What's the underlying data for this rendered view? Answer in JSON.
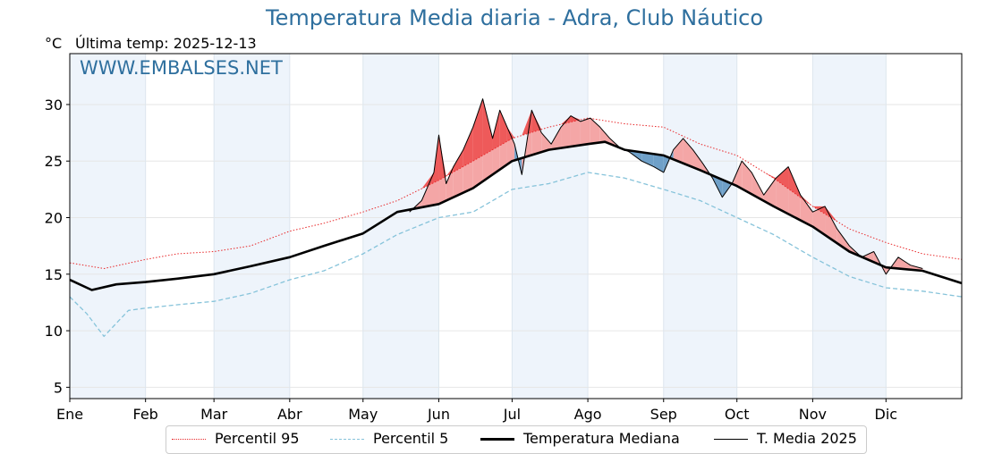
{
  "title": "Temperatura Media diaria - Adra, Club Náutico",
  "unit": "°C",
  "last_temp": "Última temp: 2025-12-13",
  "watermark": "WWW.EMBALSES.NET",
  "legend": {
    "p95": "Percentil 95",
    "p5": "Percentil 5",
    "median": "Temperatura Mediana",
    "current": "T. Media 2025"
  },
  "colors": {
    "title": "#2e6f9e",
    "p95": "#e8282a",
    "p5": "#86c3da",
    "median": "#000000",
    "current": "#000000",
    "above_fill": "#f4a6a6",
    "above_p95_fill": "#ee5a5a",
    "below_fill": "#6fa0c8",
    "month_band": "#eef4fb"
  },
  "chart_data": {
    "type": "line",
    "title": "Temperatura Media diaria - Adra, Club Náutico",
    "ylabel": "°C",
    "xlim": [
      1,
      366
    ],
    "ylim": [
      4,
      34.5
    ],
    "yticks": [
      5,
      10,
      15,
      20,
      25,
      30
    ],
    "xtick_days": [
      1,
      32,
      60,
      91,
      121,
      152,
      182,
      213,
      244,
      274,
      305,
      335
    ],
    "months": [
      "Ene",
      "Feb",
      "Mar",
      "Abr",
      "May",
      "Jun",
      "Jul",
      "Ago",
      "Sep",
      "Oct",
      "Nov",
      "Dic"
    ],
    "series": [
      {
        "name": "Percentil 95",
        "style": "dotted",
        "x": [
          1,
          15,
          32,
          45,
          60,
          75,
          91,
          105,
          121,
          135,
          152,
          166,
          182,
          197,
          213,
          228,
          244,
          259,
          274,
          289,
          305,
          320,
          335,
          350,
          366
        ],
        "values": [
          16.0,
          15.5,
          16.3,
          16.8,
          17.0,
          17.5,
          18.8,
          19.5,
          20.5,
          21.5,
          23.3,
          25.0,
          27.0,
          28.0,
          28.8,
          28.3,
          28.0,
          26.5,
          25.5,
          23.5,
          21.0,
          19.0,
          17.8,
          16.8,
          16.3
        ]
      },
      {
        "name": "Percentil 5",
        "style": "dashed",
        "x": [
          1,
          8,
          15,
          25,
          32,
          45,
          60,
          75,
          91,
          105,
          121,
          135,
          152,
          166,
          182,
          197,
          213,
          228,
          244,
          259,
          274,
          289,
          305,
          320,
          335,
          350,
          366
        ],
        "values": [
          13.0,
          11.5,
          9.5,
          11.8,
          12.0,
          12.3,
          12.6,
          13.3,
          14.5,
          15.3,
          16.8,
          18.5,
          20.0,
          20.5,
          22.5,
          23.0,
          24.0,
          23.5,
          22.5,
          21.5,
          20.0,
          18.5,
          16.5,
          14.8,
          13.8,
          13.5,
          13.0
        ]
      },
      {
        "name": "Temperatura Mediana",
        "style": "thick",
        "x": [
          1,
          10,
          20,
          32,
          45,
          60,
          75,
          91,
          105,
          121,
          135,
          152,
          166,
          182,
          197,
          213,
          220,
          228,
          244,
          259,
          274,
          289,
          305,
          320,
          335,
          350,
          366
        ],
        "values": [
          14.5,
          13.6,
          14.1,
          14.3,
          14.6,
          15.0,
          15.7,
          16.5,
          17.5,
          18.6,
          20.5,
          21.2,
          22.6,
          25.0,
          26.0,
          26.5,
          26.7,
          26.0,
          25.5,
          24.2,
          22.8,
          21.0,
          19.2,
          17.0,
          15.6,
          15.3,
          14.2
        ]
      },
      {
        "name": "T. Media 2025",
        "style": "thin",
        "x": [
          140,
          145,
          150,
          152,
          155,
          158,
          162,
          166,
          170,
          174,
          177,
          180,
          183,
          186,
          190,
          194,
          198,
          202,
          206,
          210,
          214,
          218,
          222,
          226,
          230,
          235,
          240,
          244,
          248,
          252,
          256,
          260,
          264,
          268,
          272,
          276,
          280,
          285,
          290,
          295,
          300,
          305,
          310,
          315,
          320,
          325,
          330,
          335,
          340,
          345,
          350
        ],
        "values": [
          20.5,
          21.5,
          24.0,
          27.3,
          23.0,
          24.5,
          26.0,
          28.0,
          30.5,
          27.0,
          29.5,
          28.0,
          26.5,
          23.8,
          29.5,
          27.5,
          26.5,
          28.0,
          29.0,
          28.5,
          28.8,
          28.0,
          27.0,
          26.2,
          25.8,
          25.0,
          24.5,
          24.0,
          26.0,
          27.0,
          26.0,
          24.8,
          23.5,
          21.8,
          23.0,
          25.0,
          24.0,
          22.0,
          23.5,
          24.5,
          22.0,
          20.5,
          21.0,
          19.0,
          17.5,
          16.5,
          17.0,
          15.0,
          16.5,
          15.8,
          15.5
        ]
      }
    ]
  }
}
